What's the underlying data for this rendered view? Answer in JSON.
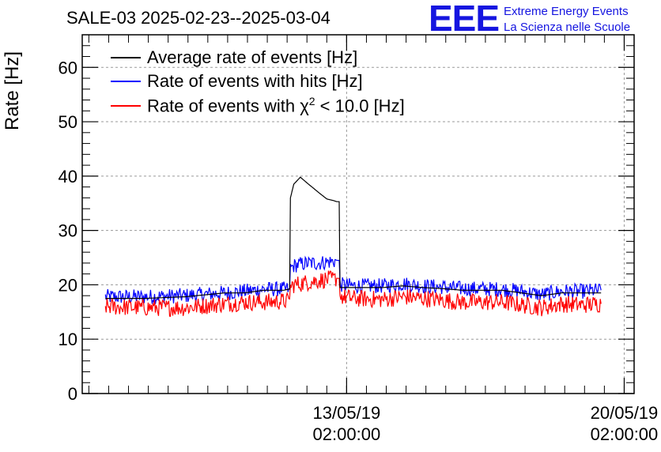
{
  "chart_data": {
    "type": "line",
    "title": "SALE-03 2025-02-23--2025-03-04",
    "ylabel": "Rate [Hz]",
    "xlabel": "",
    "ylim": [
      0,
      66
    ],
    "yticks": [
      0,
      10,
      20,
      30,
      40,
      50,
      60
    ],
    "xlim": [
      "2019-05-06T10:00",
      "2019-05-20T08:00"
    ],
    "xticks": [
      {
        "value": "2019-05-13T02:00",
        "date": "13/05/19",
        "time": "02:00:00"
      },
      {
        "value": "2019-05-20T02:00",
        "date": "20/05/19",
        "time": "02:00:00"
      }
    ],
    "grid": true,
    "legend_position": "top-left",
    "series": [
      {
        "name": "Average rate of events [Hz]",
        "color": "#000000",
        "x": [
          "2019-05-07T00:00",
          "2019-05-08T00:00",
          "2019-05-09T00:00",
          "2019-05-10T00:00",
          "2019-05-10T12:00",
          "2019-05-11T00:00",
          "2019-05-11T12:00",
          "2019-05-11T15:00",
          "2019-05-11T16:00",
          "2019-05-11T18:00",
          "2019-05-11T22:00",
          "2019-05-12T03:00",
          "2019-05-12T09:00",
          "2019-05-12T14:00",
          "2019-05-12T18:00",
          "2019-05-12T20:00",
          "2019-05-12T22:00",
          "2019-05-13T00:00",
          "2019-05-13T06:00",
          "2019-05-14T00:00",
          "2019-05-14T12:00",
          "2019-05-15T00:00",
          "2019-05-15T12:00",
          "2019-05-16T00:00",
          "2019-05-17T00:00",
          "2019-05-17T12:00",
          "2019-05-18T00:00",
          "2019-05-18T12:00",
          "2019-05-19T00:00",
          "2019-05-19T12:00"
        ],
        "y": [
          17.5,
          17.5,
          17.8,
          18.5,
          18.5,
          19.0,
          19.0,
          19.2,
          36.0,
          38.5,
          39.8,
          38.5,
          37.0,
          35.8,
          35.5,
          35.3,
          19.5,
          19.5,
          19.5,
          19.5,
          19.8,
          19.5,
          19.3,
          19.0,
          19.0,
          18.5,
          18.0,
          18.5,
          18.5,
          18.5
        ]
      },
      {
        "name": "Rate of events with hits [Hz]",
        "color": "#0000ff",
        "x": [
          "2019-05-07T00:00",
          "2019-05-08T00:00",
          "2019-05-09T00:00",
          "2019-05-10T00:00",
          "2019-05-10T12:00",
          "2019-05-11T00:00",
          "2019-05-11T12:00",
          "2019-05-11T15:00",
          "2019-05-11T16:00",
          "2019-05-11T18:00",
          "2019-05-11T22:00",
          "2019-05-12T03:00",
          "2019-05-12T09:00",
          "2019-05-12T14:00",
          "2019-05-12T18:00",
          "2019-05-12T20:00",
          "2019-05-12T22:00",
          "2019-05-13T00:00",
          "2019-05-13T06:00",
          "2019-05-14T00:00",
          "2019-05-14T12:00",
          "2019-05-15T00:00",
          "2019-05-15T12:00",
          "2019-05-16T00:00",
          "2019-05-17T00:00",
          "2019-05-17T12:00",
          "2019-05-18T00:00",
          "2019-05-18T12:00",
          "2019-05-19T00:00",
          "2019-05-19T12:00"
        ],
        "y": [
          17.8,
          17.8,
          18.0,
          18.5,
          18.8,
          19.2,
          19.2,
          19.2,
          23.0,
          23.5,
          23.8,
          24.0,
          24.0,
          24.2,
          24.3,
          24.5,
          20.0,
          20.0,
          19.8,
          19.8,
          20.2,
          19.8,
          19.6,
          19.3,
          19.2,
          18.8,
          18.2,
          18.8,
          18.8,
          19.0
        ]
      },
      {
        "name": "Rate of events with χ2 < 10.0 [Hz]",
        "color": "#ff0000",
        "x": [
          "2019-05-07T00:00",
          "2019-05-08T00:00",
          "2019-05-09T00:00",
          "2019-05-10T00:00",
          "2019-05-10T12:00",
          "2019-05-11T00:00",
          "2019-05-11T12:00",
          "2019-05-11T15:00",
          "2019-05-11T16:00",
          "2019-05-11T18:00",
          "2019-05-11T22:00",
          "2019-05-12T03:00",
          "2019-05-12T09:00",
          "2019-05-12T14:00",
          "2019-05-12T18:00",
          "2019-05-12T20:00",
          "2019-05-12T22:00",
          "2019-05-13T00:00",
          "2019-05-13T06:00",
          "2019-05-14T00:00",
          "2019-05-14T12:00",
          "2019-05-15T00:00",
          "2019-05-15T12:00",
          "2019-05-16T00:00",
          "2019-05-17T00:00",
          "2019-05-17T12:00",
          "2019-05-18T00:00",
          "2019-05-18T12:00",
          "2019-05-19T00:00",
          "2019-05-19T12:00"
        ],
        "y": [
          16.0,
          15.8,
          15.8,
          16.5,
          16.8,
          16.8,
          17.0,
          17.0,
          19.5,
          20.0,
          20.2,
          20.5,
          20.8,
          21.0,
          21.0,
          21.2,
          18.0,
          17.8,
          17.5,
          17.3,
          17.8,
          17.5,
          17.2,
          16.8,
          16.8,
          16.3,
          15.8,
          16.5,
          16.3,
          16.5
        ]
      }
    ]
  },
  "legend": {
    "avg_label": "Average rate of events [Hz]",
    "hits_label": "Rate of events with hits [Hz]",
    "chi_label_pre": "Rate of events with χ",
    "chi_label_sup": "2",
    "chi_label_post": " < 10.0 [Hz]"
  },
  "logo": {
    "mark": "EEE",
    "line1": "Extreme Energy Events",
    "line2": "La Scienza nelle Scuole",
    "color": "#1515e0"
  }
}
